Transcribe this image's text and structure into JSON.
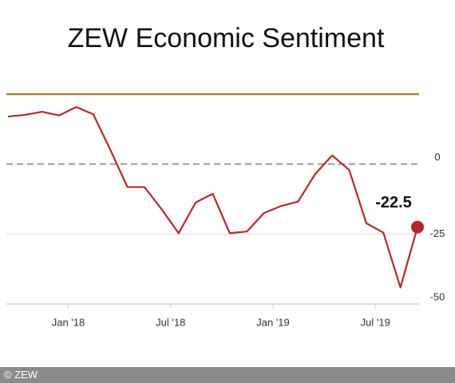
{
  "chart_data": {
    "type": "line",
    "title": "ZEW Economic Sentiment",
    "categories": [
      null,
      null,
      null,
      null,
      "Jan '18",
      null,
      null,
      null,
      null,
      null,
      "Jul '18",
      null,
      null,
      null,
      null,
      null,
      "Jan '19",
      null,
      null,
      null,
      null,
      null,
      "Jul '19",
      null,
      null
    ],
    "series": [
      {
        "name": "ZEW Economic Sentiment",
        "color": "#b5282b",
        "values": [
          17.0,
          17.6,
          18.7,
          17.4,
          20.4,
          17.8,
          5.1,
          -8.2,
          -8.2,
          -16.1,
          -24.7,
          -13.7,
          -10.6,
          -24.7,
          -24.1,
          -17.5,
          -15.0,
          -13.4,
          -3.6,
          3.1,
          -2.1,
          -21.1,
          -24.5,
          -44.1,
          -22.5
        ]
      }
    ],
    "reference_line": {
      "value": 25,
      "color": "#a08a3c"
    },
    "annotation": "-22.5",
    "ylim": [
      -50,
      25
    ],
    "yticks": [
      0,
      -25,
      -50
    ],
    "footer": "© ZEW"
  }
}
